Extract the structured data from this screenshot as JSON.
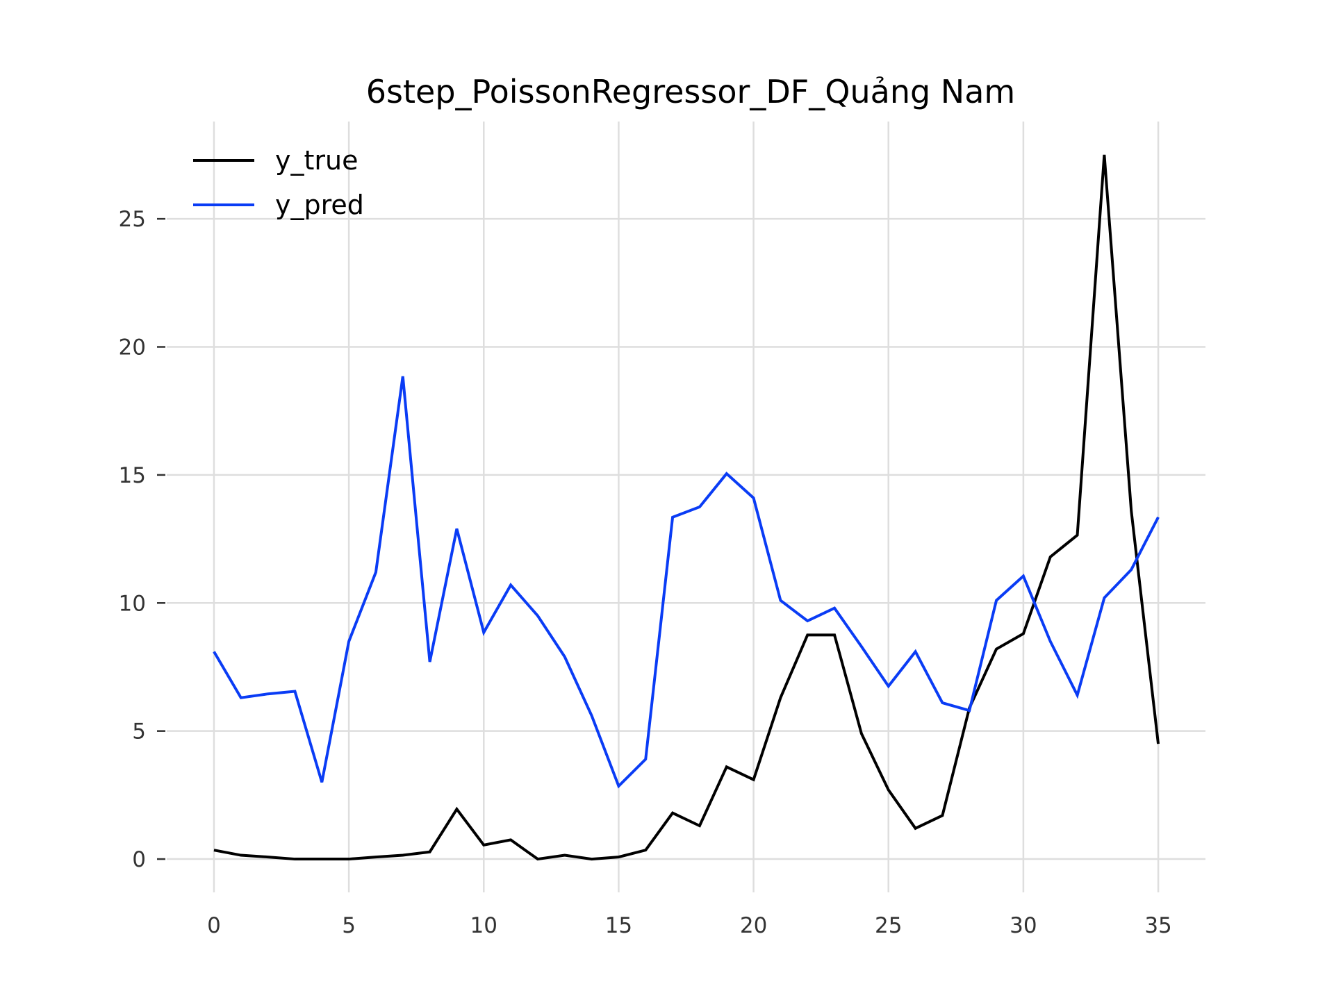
{
  "chart_data": {
    "type": "line",
    "title": "6step_PoissonRegressor_DF_Quảng Nam",
    "xlabel": "",
    "ylabel": "",
    "xlim": [
      -1.75,
      36.75
    ],
    "ylim": [
      -1.3,
      28.8
    ],
    "xticks": [
      0,
      5,
      10,
      15,
      20,
      25,
      30,
      35
    ],
    "yticks": [
      0,
      5,
      10,
      15,
      20,
      25
    ],
    "grid": true,
    "legend_position": "top-left",
    "x": [
      0,
      1,
      2,
      3,
      4,
      5,
      6,
      7,
      8,
      9,
      10,
      11,
      12,
      13,
      14,
      15,
      16,
      17,
      18,
      19,
      20,
      21,
      22,
      23,
      24,
      25,
      26,
      27,
      28,
      29,
      30,
      31,
      32,
      33,
      34,
      35
    ],
    "series": [
      {
        "name": "y_true",
        "color": "#000000",
        "values": [
          0.35,
          0.15,
          0.08,
          0.0,
          0.0,
          0.0,
          0.08,
          0.15,
          0.28,
          1.95,
          0.55,
          0.75,
          0.0,
          0.15,
          0.0,
          0.08,
          0.35,
          1.8,
          1.3,
          3.6,
          3.1,
          6.3,
          8.75,
          8.75,
          4.9,
          2.7,
          1.2,
          1.7,
          5.9,
          8.2,
          8.8,
          11.8,
          12.65,
          27.5,
          13.6,
          4.5
        ]
      },
      {
        "name": "y_pred",
        "color": "#0a3cf5",
        "values": [
          8.1,
          6.3,
          6.45,
          6.55,
          3.0,
          8.5,
          11.2,
          18.85,
          7.7,
          12.9,
          8.85,
          10.7,
          9.5,
          7.9,
          5.6,
          2.85,
          3.9,
          13.35,
          13.75,
          15.05,
          14.1,
          10.1,
          9.3,
          9.8,
          8.3,
          6.75,
          8.1,
          6.1,
          5.8,
          10.1,
          11.05,
          8.5,
          6.4,
          10.2,
          11.3,
          13.35
        ]
      }
    ]
  }
}
